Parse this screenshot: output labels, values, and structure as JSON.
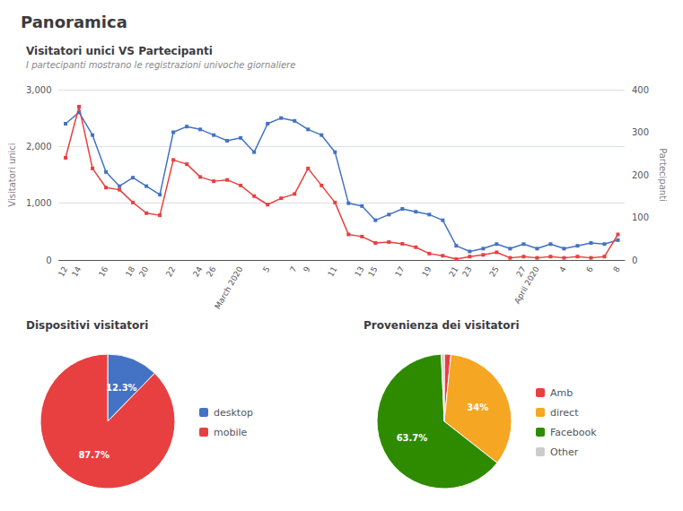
{
  "title": "Panoramica",
  "chart_data": [
    {
      "type": "line",
      "title": "Visitatori unici VS Partecipanti",
      "subtitle": "I partecipanti mostrano le registrazioni univoche giornaliere",
      "categories": [
        "12",
        "14",
        null,
        "16",
        null,
        "18",
        "20",
        null,
        "22",
        null,
        "24",
        "26",
        null,
        "March 2020",
        null,
        "5",
        null,
        "7",
        "9",
        null,
        "11",
        null,
        "13",
        "15",
        null,
        "17",
        null,
        "19",
        null,
        "21",
        "23",
        null,
        "25",
        null,
        "27",
        "April 2020",
        null,
        "4",
        null,
        "6",
        null,
        "8"
      ],
      "ylabel": "Visitatori unici",
      "y2label": "Partecipanti",
      "ylim": [
        0,
        3000
      ],
      "yticks": [
        0,
        1000,
        2000,
        3000
      ],
      "y2lim": [
        0,
        400
      ],
      "y2ticks": [
        0,
        100,
        200,
        300,
        400
      ],
      "grid": true,
      "series": [
        {
          "color": "#4472c4",
          "marker": "square",
          "values": [
            2400,
            2600,
            2200,
            1550,
            1300,
            1450,
            1300,
            1150,
            2250,
            2350,
            2300,
            2200,
            2100,
            2150,
            1900,
            2400,
            2500,
            2450,
            2300,
            2200,
            1900,
            1000,
            950,
            700,
            800,
            900,
            850,
            800,
            700,
            250,
            150,
            200,
            280,
            200,
            280,
            200,
            280,
            200,
            250,
            300,
            280,
            350
          ]
        },
        {
          "color": "#e84040",
          "marker": "square",
          "axis": "y2",
          "values": [
            240,
            360,
            215,
            170,
            165,
            135,
            110,
            105,
            235,
            225,
            195,
            185,
            188,
            175,
            150,
            130,
            145,
            155,
            215,
            175,
            135,
            60,
            55,
            40,
            42,
            38,
            30,
            15,
            10,
            2,
            8,
            12,
            18,
            5,
            8,
            5,
            8,
            5,
            8,
            5,
            8,
            60
          ]
        }
      ]
    },
    {
      "type": "pie",
      "title": "Dispositivi visitatori",
      "categories": [
        "desktop",
        "mobile"
      ],
      "values": [
        12.3,
        87.7
      ],
      "value_labels": [
        "12.3%",
        "87.7%"
      ],
      "data_labels": true,
      "colors": [
        "#4472c4",
        "#e84040"
      ],
      "legend": "right"
    },
    {
      "type": "pie",
      "title": "Provenienza dei visitatori",
      "categories": [
        "Amb",
        "direct",
        "Facebook",
        "Other"
      ],
      "values": [
        1.6,
        34.0,
        63.7,
        0.7
      ],
      "value_labels": [
        null,
        "34%",
        "63.7%",
        null
      ],
      "data_labels": true,
      "colors": [
        "#e84040",
        "#f5a623",
        "#2e8b00",
        "#cccccc"
      ],
      "legend": "right"
    }
  ]
}
